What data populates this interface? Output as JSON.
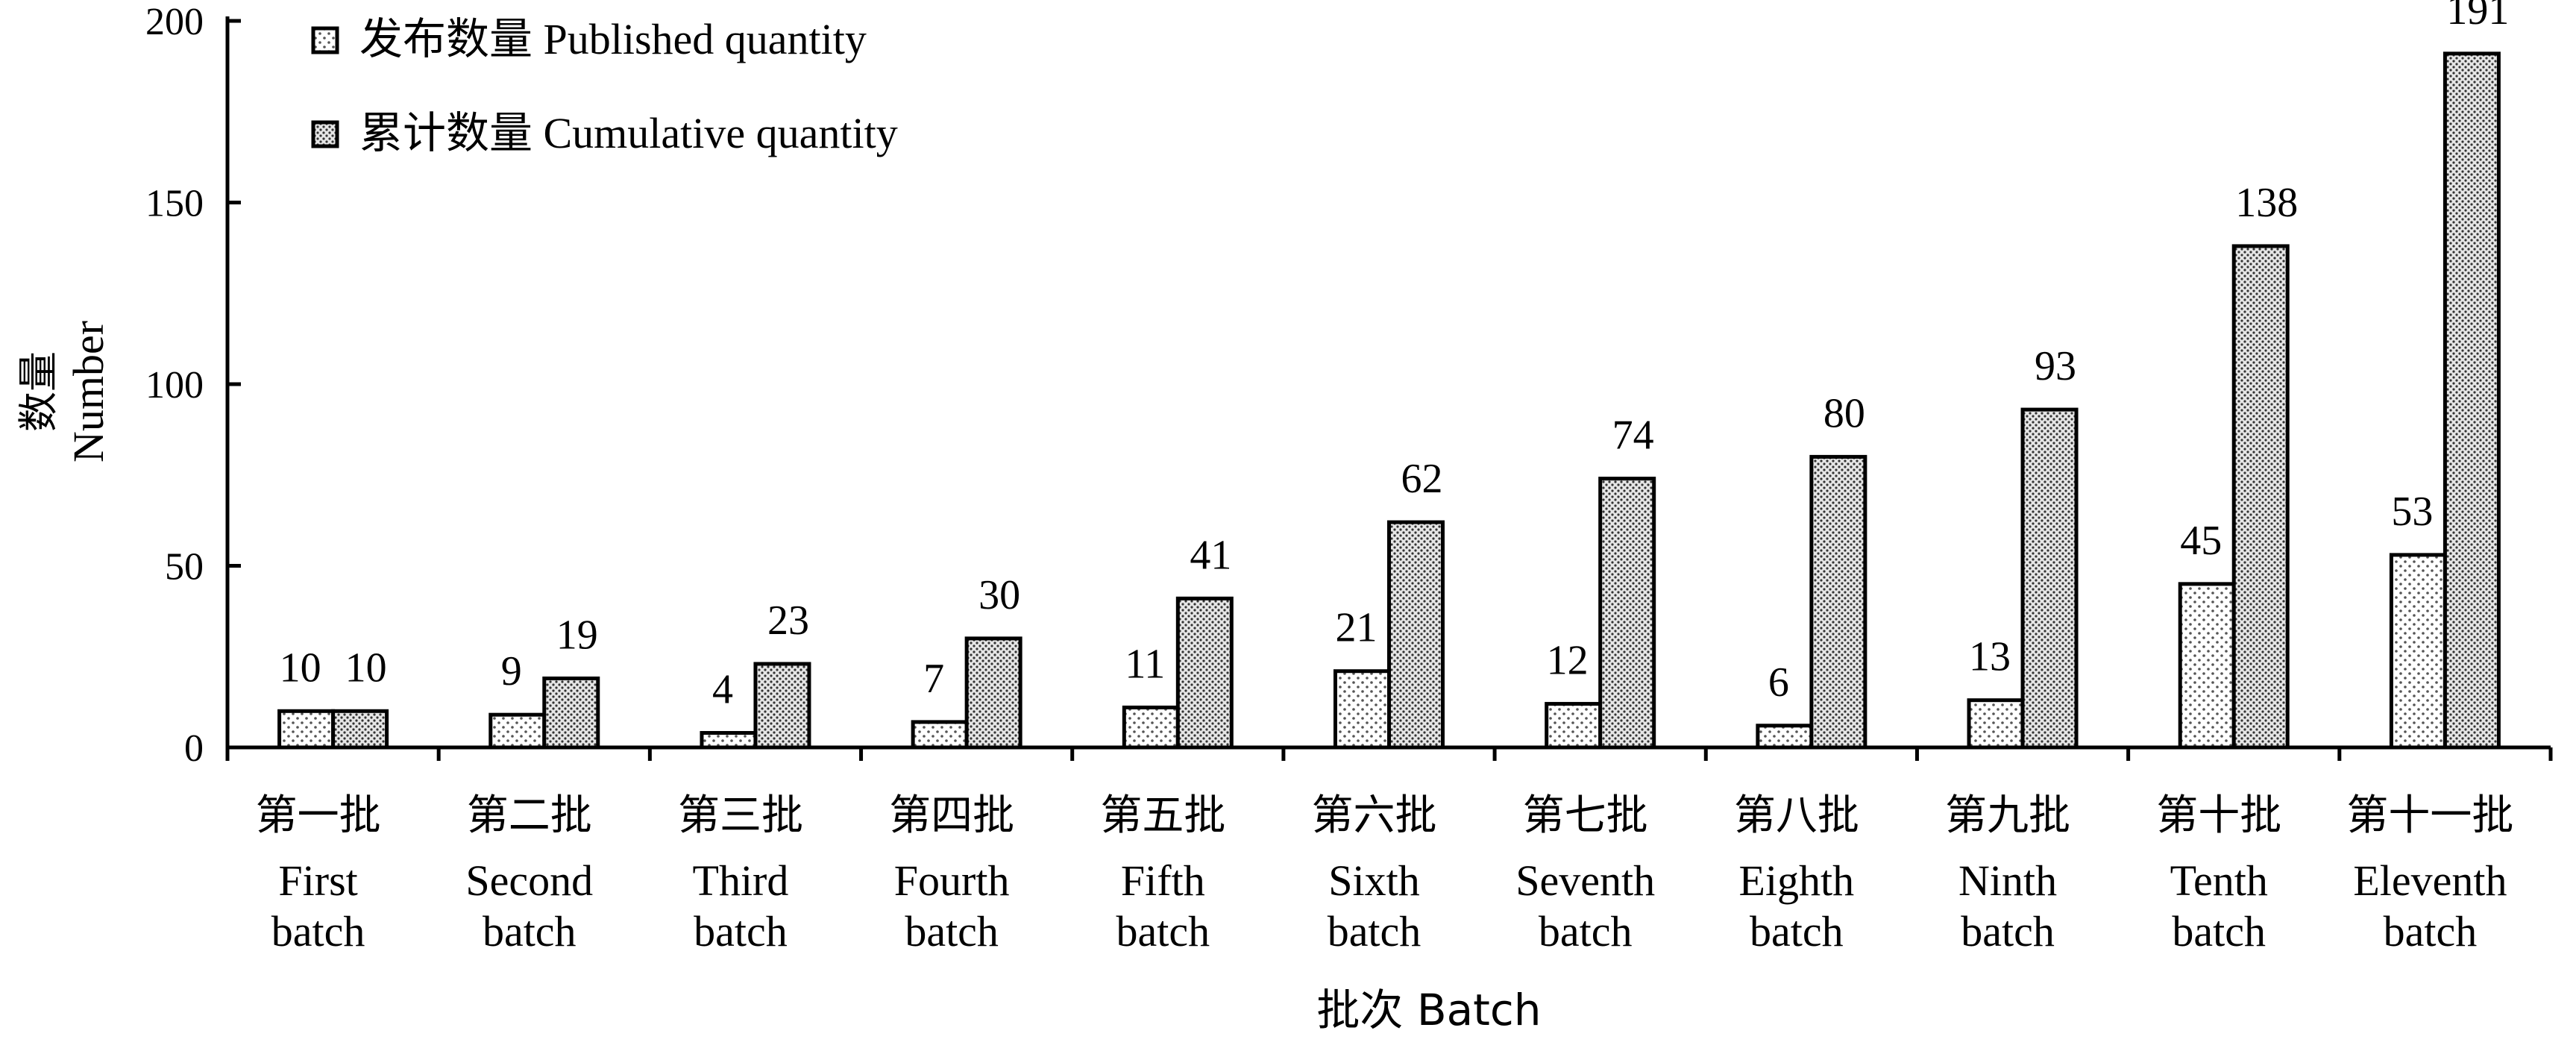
{
  "chart_data": {
    "type": "bar",
    "title": "",
    "xlabel": "批次 Batch",
    "ylabel": "数量 Number",
    "ylabel_cn": "数量",
    "ylabel_en": "Number",
    "ylim": [
      0,
      200
    ],
    "yticks": [
      0,
      50,
      100,
      150,
      200
    ],
    "grid": false,
    "legend_position": "top-left",
    "categories": [
      {
        "cn": "第一批",
        "en1": "First",
        "en2": "batch"
      },
      {
        "cn": "第二批",
        "en1": "Second",
        "en2": "batch"
      },
      {
        "cn": "第三批",
        "en1": "Third",
        "en2": "batch"
      },
      {
        "cn": "第四批",
        "en1": "Fourth",
        "en2": "batch"
      },
      {
        "cn": "第五批",
        "en1": "Fifth",
        "en2": "batch"
      },
      {
        "cn": "第六批",
        "en1": "Sixth",
        "en2": "batch"
      },
      {
        "cn": "第七批",
        "en1": "Seventh",
        "en2": "batch"
      },
      {
        "cn": "第八批",
        "en1": "Eighth",
        "en2": "batch"
      },
      {
        "cn": "第九批",
        "en1": "Ninth",
        "en2": "batch"
      },
      {
        "cn": "第十批",
        "en1": "Tenth",
        "en2": "batch"
      },
      {
        "cn": "第十一批",
        "en1": "Eleventh",
        "en2": "batch"
      }
    ],
    "series": [
      {
        "name": "发布数量 Published quantity",
        "values": [
          10,
          9,
          4,
          7,
          11,
          21,
          12,
          6,
          13,
          45,
          53
        ],
        "pattern": "sparse-dots"
      },
      {
        "name": "累计数量 Cumulative quantity",
        "values": [
          10,
          19,
          23,
          30,
          41,
          62,
          74,
          80,
          93,
          138,
          191
        ],
        "pattern": "dense-dots"
      }
    ]
  }
}
